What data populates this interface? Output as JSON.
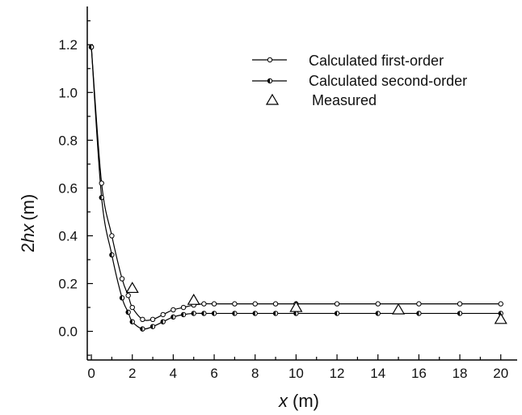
{
  "chart_data": {
    "type": "line",
    "xlabel_italic": "x",
    "xlabel_unit": "(m)",
    "ylabel_prefix": "2",
    "ylabel_italic": "hx",
    "ylabel_unit": "(m)",
    "xlim": [
      -0.2,
      20.8
    ],
    "ylim": [
      -0.12,
      1.36
    ],
    "xticks": [
      0,
      2,
      4,
      6,
      8,
      10,
      12,
      14,
      16,
      18,
      20
    ],
    "yticks": [
      0.0,
      0.2,
      0.4,
      0.6,
      0.8,
      1.0,
      1.2
    ],
    "ytick_labels": [
      "0.0",
      "0.2",
      "0.4",
      "0.6",
      "0.8",
      "1.0",
      "1.2"
    ],
    "legend_position": "top-right",
    "series": [
      {
        "name": "Calculated first-order",
        "marker": "open-circle",
        "x": [
          0,
          0.5,
          1.0,
          1.5,
          1.8,
          2.0,
          2.5,
          3.0,
          3.5,
          4.0,
          4.5,
          5.0,
          5.5,
          6.0,
          7.0,
          8.0,
          9.0,
          10.0,
          12.0,
          14.0,
          16.0,
          18.0,
          20.0
        ],
        "y": [
          1.19,
          0.62,
          0.4,
          0.22,
          0.15,
          0.1,
          0.05,
          0.05,
          0.07,
          0.09,
          0.1,
          0.11,
          0.115,
          0.115,
          0.115,
          0.115,
          0.115,
          0.115,
          0.115,
          0.115,
          0.115,
          0.115,
          0.115
        ]
      },
      {
        "name": "Calculated second-order",
        "marker": "half-filled-circle",
        "x": [
          0,
          0.5,
          1.0,
          1.5,
          1.8,
          2.0,
          2.5,
          3.0,
          3.5,
          4.0,
          4.5,
          5.0,
          5.5,
          6.0,
          7.0,
          8.0,
          9.0,
          10.0,
          12.0,
          14.0,
          16.0,
          18.0,
          20.0
        ],
        "y": [
          1.19,
          0.56,
          0.32,
          0.14,
          0.08,
          0.04,
          0.01,
          0.02,
          0.04,
          0.06,
          0.07,
          0.075,
          0.075,
          0.075,
          0.075,
          0.075,
          0.075,
          0.075,
          0.075,
          0.075,
          0.075,
          0.075,
          0.075
        ]
      },
      {
        "name": "Measured",
        "marker": "open-triangle",
        "x": [
          2,
          5,
          10,
          15,
          20
        ],
        "y": [
          0.18,
          0.13,
          0.1,
          0.09,
          0.05
        ]
      }
    ]
  }
}
